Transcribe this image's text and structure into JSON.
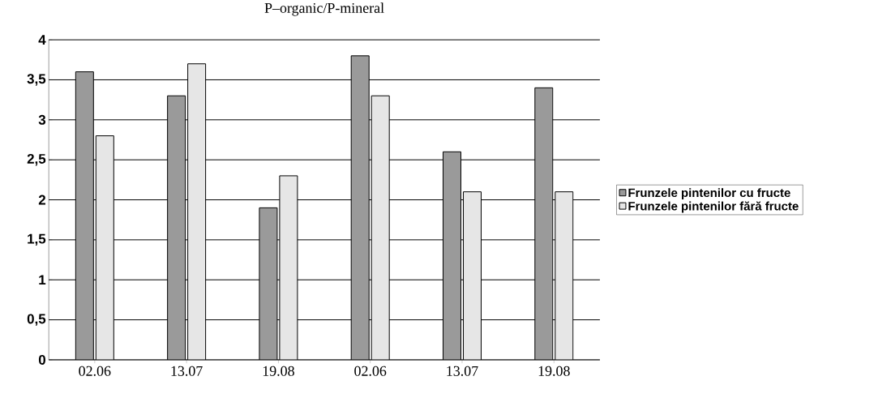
{
  "chart_data": {
    "type": "bar",
    "title": "P–organic/P-mineral",
    "categories": [
      "02.06",
      "13.07",
      "19.08",
      "02.06",
      "13.07",
      "19.08"
    ],
    "series": [
      {
        "name": "Frunzele pintenilor cu fructe",
        "color": "#9a9a9a",
        "values": [
          3.6,
          3.3,
          1.9,
          3.8,
          2.6,
          3.4
        ]
      },
      {
        "name": "Frunzele pintenilor fără fructe",
        "color": "#e6e6e6",
        "values": [
          2.8,
          3.7,
          2.3,
          3.3,
          2.1,
          2.1
        ]
      }
    ],
    "ylim": [
      0,
      4
    ],
    "yticks": [
      0,
      {
        "value": 0.5,
        "label": "0,5"
      },
      1,
      {
        "value": 1.5,
        "label": "1,5"
      },
      2,
      {
        "value": 2.5,
        "label": "2,5"
      },
      3,
      {
        "value": 3.5,
        "label": "3,5"
      },
      4
    ],
    "grid": "y",
    "legend": "right"
  }
}
